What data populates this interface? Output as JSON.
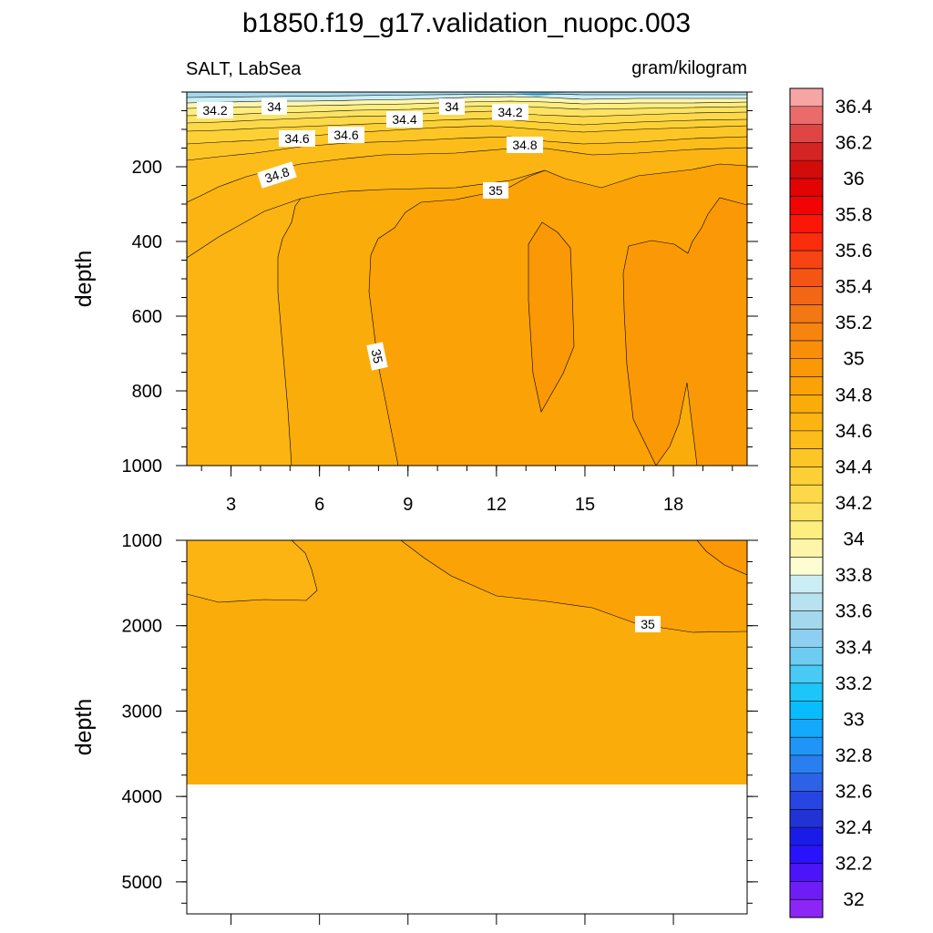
{
  "chart_data": {
    "title": "b1850.f19_g17.validation_nuopc.003",
    "variable_label": "SALT, LabSea",
    "units_label": "gram/kilogram",
    "colorbar": {
      "tick_labels": [
        "32",
        "32.2",
        "32.4",
        "32.6",
        "32.8",
        "33",
        "33.2",
        "33.4",
        "33.6",
        "33.8",
        "34",
        "34.2",
        "34.4",
        "34.6",
        "34.8",
        "35",
        "35.2",
        "35.4",
        "35.6",
        "35.8",
        "36",
        "36.2",
        "36.4"
      ],
      "colors": [
        "#8d25f7",
        "#6f1df7",
        "#4c15f9",
        "#2913ff",
        "#1b1be8",
        "#2233d6",
        "#2844e3",
        "#2d61e7",
        "#2a7ff0",
        "#1f96f7",
        "#14a9fb",
        "#08bdfd",
        "#1cc6f9",
        "#47cbf4",
        "#6ecbf2",
        "#8dcff0",
        "#a4d8ec",
        "#b9e2f0",
        "#cbeef5",
        "#fefdd2",
        "#fdf6a8",
        "#fdee7f",
        "#fde363",
        "#fdd94a",
        "#fdd136",
        "#fdc627",
        "#fcbd1b",
        "#fbb412",
        "#faac0a",
        "#fba207",
        "#fa9905",
        "#f98f08",
        "#f6840f",
        "#f37713",
        "#f26615",
        "#f45514",
        "#f64412",
        "#fa2d0c",
        "#fc1608",
        "#f30404",
        "#e20303",
        "#d20b0b",
        "#d42424",
        "#e04545",
        "#eb6b6b",
        "#f6a4a4"
      ]
    },
    "panels": [
      {
        "type": "contour",
        "ylabel": "depth",
        "x_ticks": [
          "3",
          "6",
          "9",
          "12",
          "15",
          "18"
        ],
        "y_ticks": [
          "200",
          "400",
          "600",
          "800",
          "1000"
        ],
        "xlim": [
          1.5,
          20.5
        ],
        "ylim": [
          0,
          1000
        ],
        "contour_labels": [
          "34.2",
          "34",
          "34",
          "34.2",
          "34.4",
          "34.6",
          "34.6",
          "34.8",
          "34.8",
          "35",
          "35"
        ]
      },
      {
        "type": "contour",
        "ylabel": "depth",
        "y_ticks": [
          "1000",
          "2000",
          "3000",
          "4000",
          "5000"
        ],
        "xlim": [
          1.5,
          20.5
        ],
        "ylim": [
          1000,
          5375
        ],
        "contour_labels": [
          "35"
        ]
      }
    ]
  }
}
